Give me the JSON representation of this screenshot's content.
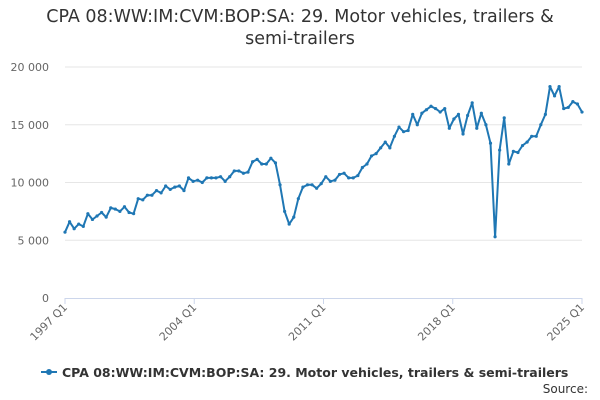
{
  "chart_data": {
    "type": "line",
    "title_line1": "CPA 08:WW:IM:CVM:BOP:SA: 29. Motor vehicles, trailers &",
    "title_line2": "semi-trailers",
    "xlabel": "",
    "ylabel": "",
    "ylim": [
      0,
      20000
    ],
    "y_ticks": [
      0,
      5000,
      10000,
      15000,
      20000
    ],
    "y_tick_labels": [
      "0",
      "5 000",
      "10 000",
      "15 000",
      "20 000"
    ],
    "x_ticks": [
      "1997 Q1",
      "2004 Q1",
      "2011 Q1",
      "2018 Q1",
      "2025 Q1"
    ],
    "x_start": "1997 Q1",
    "x_end": "2025 Q1",
    "grid": true,
    "legend_position": "bottom",
    "series": [
      {
        "name": "CPA 08:WW:IM:CVM:BOP:SA: 29. Motor vehicles, trailers & semi-trailers",
        "color": "#1f77b4",
        "values": [
          5700,
          6600,
          6000,
          6400,
          6200,
          7300,
          6800,
          7100,
          7400,
          7000,
          7800,
          7700,
          7500,
          7900,
          7400,
          7300,
          8600,
          8500,
          8900,
          8900,
          9300,
          9100,
          9700,
          9400,
          9600,
          9700,
          9300,
          10400,
          10100,
          10200,
          10000,
          10400,
          10400,
          10400,
          10500,
          10100,
          10500,
          11000,
          11000,
          10800,
          10900,
          11800,
          12000,
          11600,
          11600,
          12100,
          11700,
          9800,
          7500,
          6400,
          7000,
          8600,
          9600,
          9800,
          9800,
          9500,
          9900,
          10500,
          10100,
          10200,
          10700,
          10800,
          10400,
          10400,
          10600,
          11300,
          11600,
          12300,
          12500,
          13000,
          13500,
          13000,
          14000,
          14800,
          14400,
          14500,
          15900,
          15000,
          16000,
          16300,
          16600,
          16400,
          16100,
          16400,
          14700,
          15500,
          15900,
          14200,
          15800,
          16900,
          14700,
          16000,
          15000,
          13400,
          5300,
          12800,
          15600,
          11600,
          12700,
          12600,
          13200,
          13500,
          14000,
          14000,
          15000,
          15900,
          18300,
          17500,
          18300,
          16400,
          16500,
          17000,
          16800,
          16100
        ]
      }
    ]
  },
  "source_label": "Source:"
}
